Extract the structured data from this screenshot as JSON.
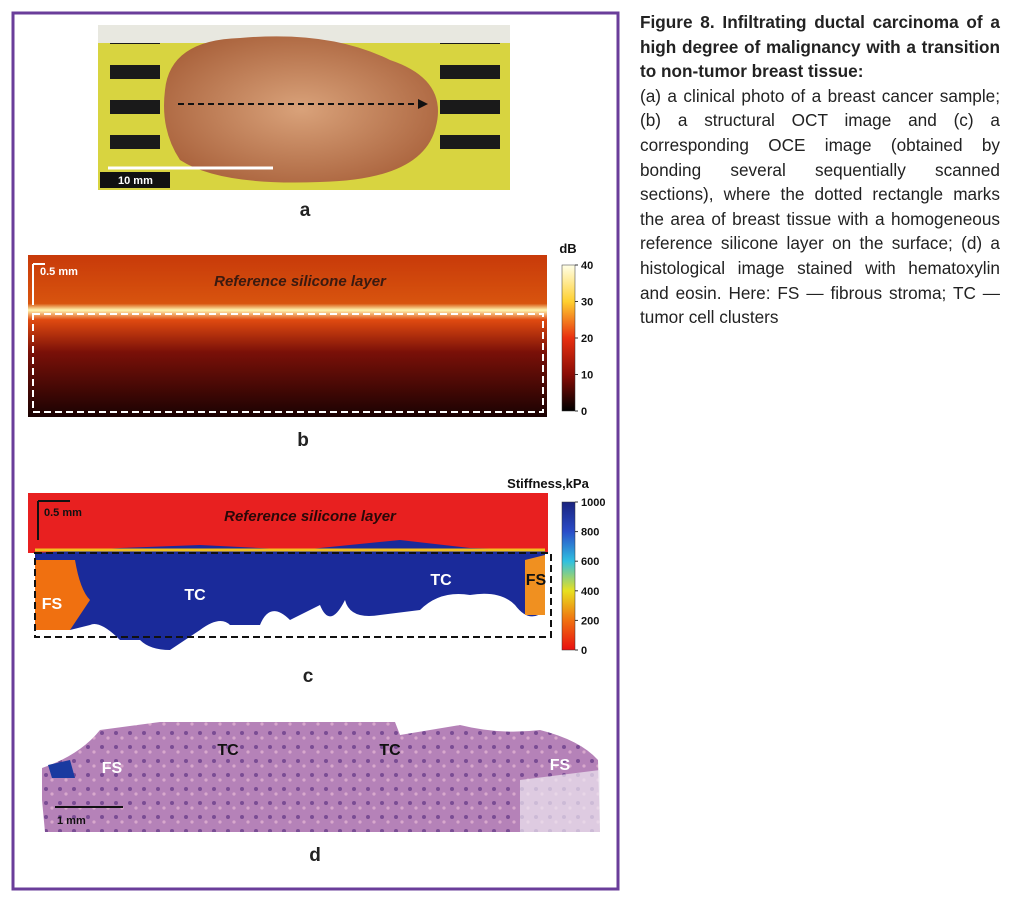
{
  "caption": {
    "title": "Figure 8. Infiltrating ductal carcinoma of a high degree of malignancy with a transition to non-tumor breast tissue:",
    "body": "(a) a clinical photo of a breast cancer sample; (b) a structural OCT image and (c) a corresponding OCE image (obtained by bonding several sequentially scanned sections), where the dotted rectangle marks the area of breast tissue with a homogeneous reference silicone layer on the surface; (d) a histological image stained with hematoxylin and eosin. Here: FS — fibrous stroma; TC — tumor cell clusters"
  },
  "panel_a": {
    "label": "a",
    "scale_bar": "10 mm"
  },
  "panel_b": {
    "label": "b",
    "scale_bar": "0.5 mm",
    "annotation": "Reference silicone layer",
    "colorbar": {
      "title": "dB",
      "lim": [
        0,
        40
      ],
      "ticks": [
        40,
        30,
        20,
        10,
        0
      ]
    }
  },
  "panel_c": {
    "label": "c",
    "scale_bar": "0.5 mm",
    "annotation": "Reference silicone layer",
    "regions": [
      "FS",
      "TC",
      "TC",
      "FS"
    ],
    "colorbar": {
      "title": "Stiffness,kPa",
      "lim": [
        0,
        1000
      ],
      "ticks": [
        1000,
        800,
        600,
        400,
        200,
        0
      ]
    }
  },
  "panel_d": {
    "label": "d",
    "scale_bar": "1 mm",
    "regions": [
      "FS",
      "TC",
      "TC",
      "FS"
    ]
  }
}
